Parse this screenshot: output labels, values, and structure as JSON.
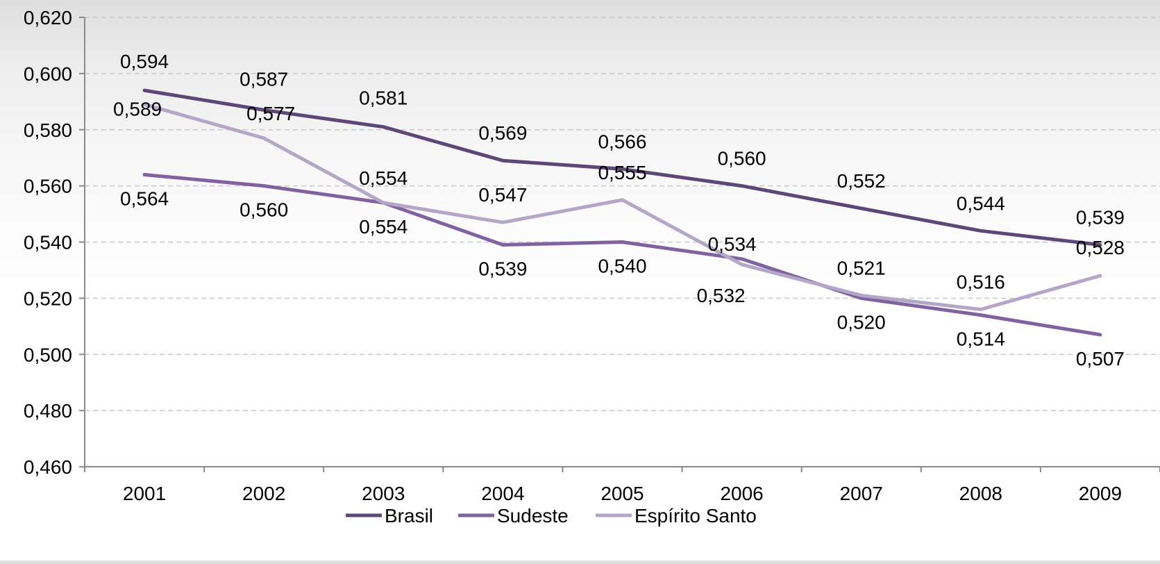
{
  "chart_data": {
    "type": "line",
    "title": "",
    "xlabel": "",
    "ylabel": "",
    "categories": [
      "2001",
      "2002",
      "2003",
      "2004",
      "2005",
      "2006",
      "2007",
      "2008",
      "2009"
    ],
    "ylim": [
      0.46,
      0.62
    ],
    "y_ticks": [
      0.46,
      0.48,
      0.5,
      0.52,
      0.54,
      0.56,
      0.58,
      0.6,
      0.62
    ],
    "y_tick_labels": [
      "0,460",
      "0,480",
      "0,500",
      "0,520",
      "0,540",
      "0,560",
      "0,580",
      "0,600",
      "0,620"
    ],
    "grid": true,
    "legend_position": "bottom",
    "series": [
      {
        "name": "Brasil",
        "color": "#5e4677",
        "values": [
          0.594,
          0.587,
          0.581,
          0.569,
          0.566,
          0.56,
          0.552,
          0.544,
          0.539
        ],
        "labels": [
          "0,594",
          "0,587",
          "0,581",
          "0,569",
          "0,566",
          "0,560",
          "0,552",
          "0,544",
          "0,539"
        ]
      },
      {
        "name": "Sudeste",
        "color": "#8062a0",
        "values": [
          0.564,
          0.56,
          0.554,
          0.539,
          0.54,
          0.534,
          0.52,
          0.514,
          0.507
        ],
        "labels": [
          "0,564",
          "0,560",
          "0,554",
          "0,539",
          "0,540",
          "0,534",
          "0,520",
          "0,514",
          "0,507"
        ]
      },
      {
        "name": "Espírito Santo",
        "color": "#b3a6c6",
        "values": [
          0.589,
          0.577,
          0.554,
          0.547,
          0.555,
          0.532,
          0.521,
          0.516,
          0.528
        ],
        "labels": [
          "0,589",
          "0,577",
          "0,554",
          "0,547",
          "0,555",
          "0,532",
          "0,521",
          "0,516",
          "0,528"
        ]
      }
    ]
  }
}
